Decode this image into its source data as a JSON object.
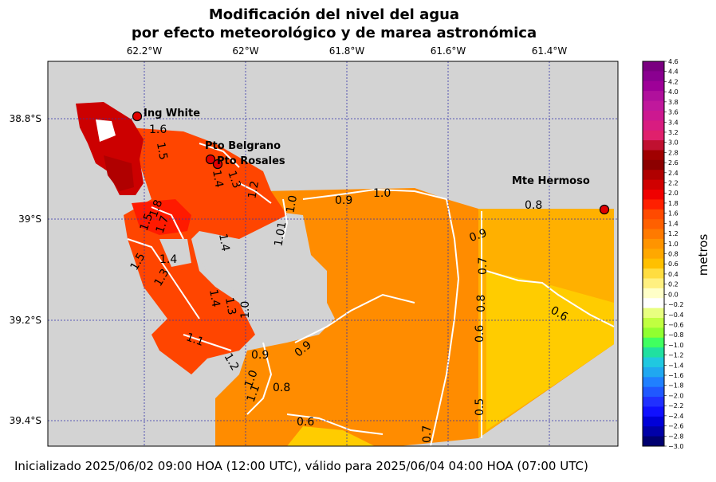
{
  "title": {
    "line1": "Modificación del nivel del agua",
    "line2": "por efecto meteorológico y de marea astronómica"
  },
  "footer": "Inicializado 2025/06/02 09:00 HOA (12:00 UTC), válido para 2025/06/04 04:00 HOA (07:00 UTC)",
  "map": {
    "lon_labels": [
      "62.2°W",
      "62°W",
      "61.8°W",
      "61.6°W",
      "61.4°W"
    ],
    "lat_labels": [
      "38.8°S",
      "39°S",
      "39.2°S",
      "39.4°S"
    ],
    "places": [
      {
        "name": "Ing White"
      },
      {
        "name": "Pto Belgrano"
      },
      {
        "name": "Pto Rosales"
      },
      {
        "name": "Mte Hermoso"
      }
    ],
    "contour_labels": [
      "1.6",
      "1.5",
      "1.4",
      "1.3",
      "1.2",
      "1.0",
      "0.9",
      "1.0",
      "0.8",
      "1.8",
      "1.7",
      "1.5",
      "1.4",
      "1.5",
      "1.4",
      "1.3",
      "1.01",
      "0.9",
      "0.7",
      "0.8",
      "0.6",
      "0.6",
      "1.4",
      "1.3",
      "1.0",
      "0.9",
      "1.1",
      "1.2",
      "0.9",
      "1.0",
      "0.8",
      "0.6",
      "0.5",
      "0.7",
      "1.1"
    ],
    "colors": {
      "land": "#d3d3d3",
      "water_high": "#ff4500",
      "water_mid": "#ff8c00",
      "water_low": "#ffb000",
      "water_min": "#ffcc00"
    }
  },
  "colorbar": {
    "label": "metros",
    "ticks": [
      "4.6",
      "4.4",
      "4.2",
      "4.0",
      "3.8",
      "3.6",
      "3.4",
      "3.2",
      "3.0",
      "2.8",
      "2.6",
      "2.4",
      "2.2",
      "2.0",
      "1.8",
      "1.6",
      "1.4",
      "1.2",
      "1.0",
      "0.8",
      "0.6",
      "0.4",
      "0.2",
      "0.0",
      "−0.2",
      "−0.4",
      "−0.6",
      "−0.8",
      "−1.0",
      "−1.2",
      "−1.4",
      "−1.6",
      "−1.8",
      "−2.0",
      "−2.2",
      "−2.4",
      "−2.6",
      "−2.8",
      "−3.0"
    ],
    "colors": [
      "#7a0080",
      "#8a0090",
      "#9e0098",
      "#b0109c",
      "#c0189c",
      "#cc1890",
      "#d81c80",
      "#e0206c",
      "#c01030",
      "#a00000",
      "#8c0000",
      "#b00000",
      "#d00000",
      "#f00000",
      "#ff2000",
      "#ff4a00",
      "#ff6000",
      "#ff7a00",
      "#ff9400",
      "#ffa800",
      "#ffc000",
      "#ffdd40",
      "#fff080",
      "#ffffc8",
      "#ffffff",
      "#e8ff80",
      "#c0ff40",
      "#90ff30",
      "#40ff60",
      "#20e0a0",
      "#20c8e0",
      "#20a8f0",
      "#2080ff",
      "#2058ff",
      "#2030ff",
      "#1010ff",
      "#0000d8",
      "#0000a8",
      "#000070"
    ]
  }
}
